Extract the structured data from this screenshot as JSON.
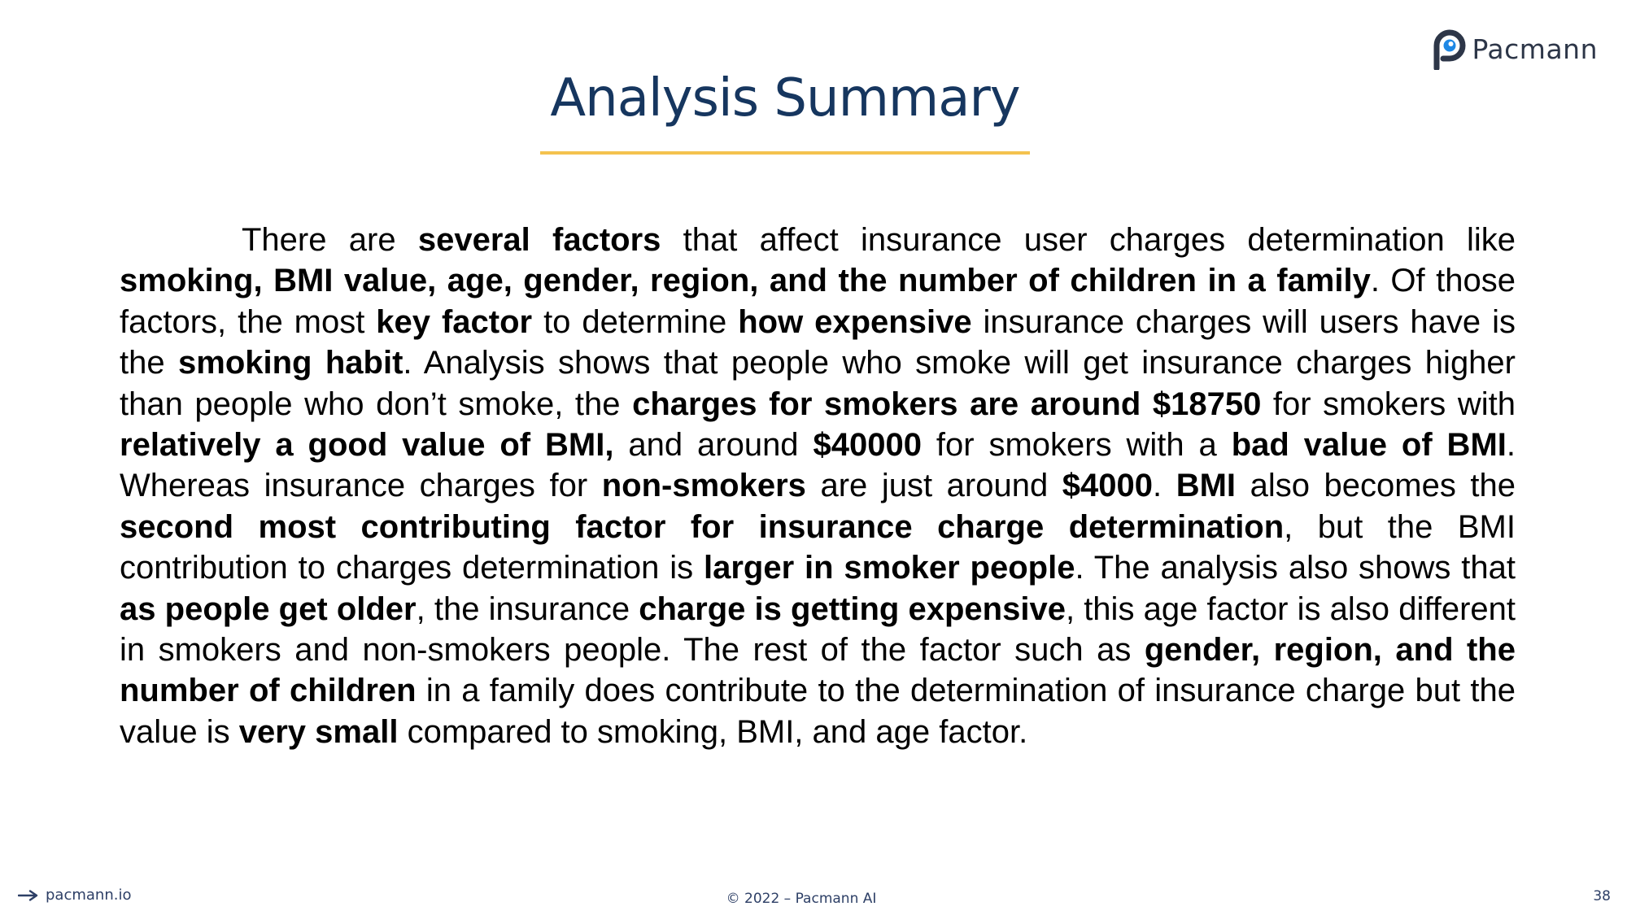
{
  "brand": {
    "logo_text": "Pacmann"
  },
  "slide": {
    "title": "Analysis Summary",
    "paragraph": [
      {
        "text": "There are ",
        "bold": false
      },
      {
        "text": "several factors",
        "bold": true
      },
      {
        "text": " that affect insurance user charges determination like ",
        "bold": false
      },
      {
        "text": "smoking, BMI value, age, gender, region, and the number of children in a family",
        "bold": true
      },
      {
        "text": ". Of those factors, the most ",
        "bold": false
      },
      {
        "text": "key factor",
        "bold": true
      },
      {
        "text": " to determine ",
        "bold": false
      },
      {
        "text": "how expensive",
        "bold": true
      },
      {
        "text": " insurance charges will users have is the ",
        "bold": false
      },
      {
        "text": "smoking habit",
        "bold": true
      },
      {
        "text": ". Analysis shows that people who smoke will get insurance charges higher than people who don’t smoke, the ",
        "bold": false
      },
      {
        "text": "charges for smokers are around $18750",
        "bold": true
      },
      {
        "text": " for smokers with ",
        "bold": false
      },
      {
        "text": "relatively a good value of BMI,",
        "bold": true
      },
      {
        "text": " and around ",
        "bold": false
      },
      {
        "text": "$40000",
        "bold": true
      },
      {
        "text": " for smokers with a ",
        "bold": false
      },
      {
        "text": "bad value of BMI",
        "bold": true
      },
      {
        "text": ". Whereas insurance charges for ",
        "bold": false
      },
      {
        "text": "non-smokers",
        "bold": true
      },
      {
        "text": " are just around ",
        "bold": false
      },
      {
        "text": "$4000",
        "bold": true
      },
      {
        "text": ". ",
        "bold": false
      },
      {
        "text": "BMI",
        "bold": true
      },
      {
        "text": " also becomes the ",
        "bold": false
      },
      {
        "text": "second most contributing factor for insurance charge determination",
        "bold": true
      },
      {
        "text": ", but the BMI contribution to charges determination is ",
        "bold": false
      },
      {
        "text": "larger in smoker people",
        "bold": true
      },
      {
        "text": ". The analysis also shows that ",
        "bold": false
      },
      {
        "text": "as people get older",
        "bold": true
      },
      {
        "text": ", the insurance ",
        "bold": false
      },
      {
        "text": "charge is getting expensive",
        "bold": true
      },
      {
        "text": ", this age factor is also different in smokers and non-smokers people. The rest of the factor such as ",
        "bold": false
      },
      {
        "text": "gender, region, and the number of children",
        "bold": true
      },
      {
        "text": " in a family does contribute to the determination of insurance charge but the value is ",
        "bold": false
      },
      {
        "text": "very small",
        "bold": true
      },
      {
        "text": " compared to smoking, BMI, and age factor.",
        "bold": false
      }
    ]
  },
  "footer": {
    "link_text": "pacmann.io",
    "copyright": "© 2022 – Pacmann AI",
    "page_number": "38"
  },
  "colors": {
    "title": "#16365f",
    "accent_underline": "#f4c24e",
    "footer_text": "#2d3f66",
    "logo_dark": "#2d3648",
    "logo_blue": "#1e88e5"
  },
  "icons": {
    "logo": "pacmann-logo-icon",
    "footer_link": "arrow-right-icon"
  }
}
